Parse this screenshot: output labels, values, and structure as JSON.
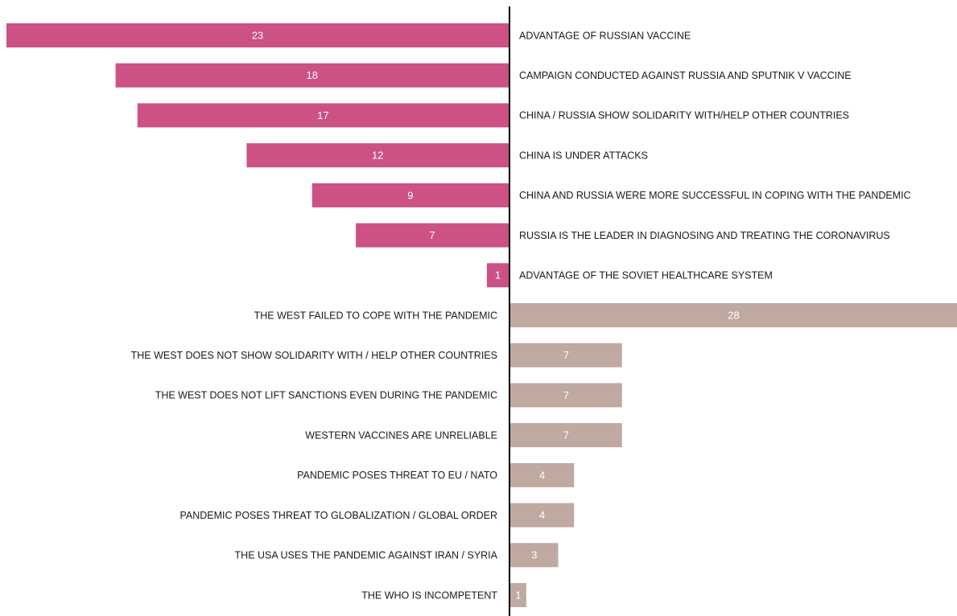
{
  "chart_data": {
    "type": "diverging-bar",
    "categories": [
      "ADVANTAGE OF RUSSIAN VACCINE",
      "CAMPAIGN CONDUCTED AGAINST RUSSIA AND SPUTNIK V VACCINE",
      "CHINA / RUSSIA SHOW SOLIDARITY WITH/HELP OTHER COUNTRIES",
      "CHINA IS UNDER ATTACKS",
      "CHINA AND RUSSIA WERE MORE SUCCESSFUL IN COPING WITH THE PANDEMIC",
      "RUSSIA IS THE LEADER IN DIAGNOSING AND TREATING THE CORONAVIRUS",
      "ADVANTAGE OF THE SOVIET HEALTHCARE SYSTEM",
      "THE WEST FAILED TO COPE WITH THE PANDEMIC",
      "THE WEST DOES NOT SHOW SOLIDARITY WITH / HELP OTHER COUNTRIES",
      "THE WEST DOES NOT LIFT SANCTIONS EVEN DURING THE PANDEMIC",
      "WESTERN VACCINES ARE UNRELIABLE",
      "PANDEMIC POSES THREAT TO EU / NATO",
      "PANDEMIC POSES THREAT TO GLOBALIZATION / GLOBAL ORDER",
      "THE USA USES THE PANDEMIC AGAINST IRAN / SYRIA",
      "THE WHO IS INCOMPETENT"
    ],
    "series": [
      {
        "color": "#cc5185",
        "values": [
          23,
          18,
          17,
          12,
          9,
          7,
          1,
          null,
          null,
          null,
          null,
          null,
          null,
          null,
          null
        ]
      },
      {
        "color": "#bfa9a0",
        "values": [
          null,
          null,
          null,
          null,
          null,
          null,
          null,
          28,
          7,
          7,
          7,
          4,
          4,
          3,
          1
        ]
      }
    ]
  }
}
